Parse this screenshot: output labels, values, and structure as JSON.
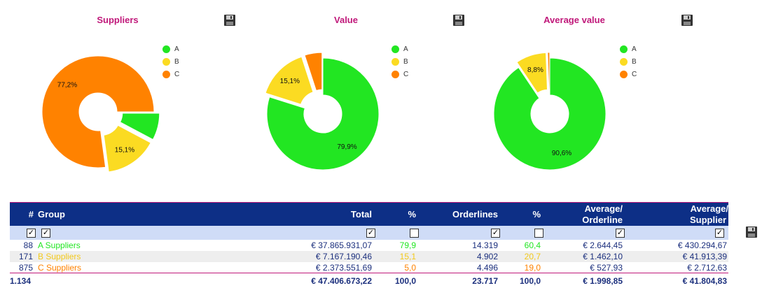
{
  "charts": [
    {
      "title": "Suppliers",
      "legend": [
        "A",
        "B",
        "C"
      ],
      "slices": [
        {
          "name": "A",
          "value": 7.8,
          "color": "#22e622",
          "label": ""
        },
        {
          "name": "B",
          "value": 15.1,
          "color": "#fbdb22",
          "label": "15,1%"
        },
        {
          "name": "C",
          "value": 77.2,
          "color": "#ff8200",
          "label": "77,2%"
        }
      ]
    },
    {
      "title": "Value",
      "legend": [
        "A",
        "B",
        "C"
      ],
      "slices": [
        {
          "name": "A",
          "value": 79.9,
          "color": "#22e622",
          "label": "79,9%"
        },
        {
          "name": "B",
          "value": 15.1,
          "color": "#fbdb22",
          "label": "15,1%"
        },
        {
          "name": "C",
          "value": 5.0,
          "color": "#ff8200",
          "label": ""
        }
      ]
    },
    {
      "title": "Average value",
      "legend": [
        "A",
        "B",
        "C"
      ],
      "slices": [
        {
          "name": "A",
          "value": 90.6,
          "color": "#22e622",
          "label": "90,6%"
        },
        {
          "name": "B",
          "value": 8.8,
          "color": "#fbdb22",
          "label": "8,8%"
        },
        {
          "name": "C",
          "value": 0.6,
          "color": "#ff8200",
          "label": ""
        }
      ]
    }
  ],
  "chart_data": [
    {
      "type": "pie",
      "title": "Suppliers",
      "categories": [
        "A",
        "B",
        "C"
      ],
      "values": [
        7.8,
        15.1,
        77.2
      ],
      "legend": "top-right"
    },
    {
      "type": "pie",
      "title": "Value",
      "categories": [
        "A",
        "B",
        "C"
      ],
      "values": [
        79.9,
        15.1,
        5.0
      ],
      "legend": "top-right"
    },
    {
      "type": "pie",
      "title": "Average value",
      "categories": [
        "A",
        "B",
        "C"
      ],
      "values": [
        90.6,
        8.8,
        0.6
      ],
      "legend": "top-right"
    }
  ],
  "table": {
    "headers": {
      "num": "#",
      "group": "Group",
      "total": "Total",
      "pct1": "%",
      "orderlines": "Orderlines",
      "pct2": "%",
      "avg_orderline_1": "Average/",
      "avg_orderline_2": "Orderline",
      "avg_supplier_1": "Average/",
      "avg_supplier_2": "Supplier"
    },
    "checkboxes": {
      "num": "✓",
      "group": "✓",
      "total": "✓",
      "pct1": "",
      "orderlines": "✓",
      "pct2": "",
      "avg_orderline": "✓",
      "avg_supplier": "✓"
    },
    "rows": [
      {
        "num": "88",
        "group": "A Suppliers",
        "total": "€ 37.865.931,07",
        "pct1": "79,9",
        "orderlines": "14.319",
        "pct2": "60,4",
        "avg_orderline": "€ 2.644,45",
        "avg_supplier": "€ 430.294,67",
        "color": "#22e622"
      },
      {
        "num": "171",
        "group": "B Suppliers",
        "total": "€ 7.167.190,46",
        "pct1": "15,1",
        "orderlines": "4.902",
        "pct2": "20,7",
        "avg_orderline": "€ 1.462,10",
        "avg_supplier": "€ 41.913,39",
        "color": "#f3c91a"
      },
      {
        "num": "875",
        "group": "C Suppliers",
        "total": "€ 2.373.551,69",
        "pct1": "5,0",
        "orderlines": "4.496",
        "pct2": "19,0",
        "avg_orderline": "€ 527,93",
        "avg_supplier": "€ 2.712,63",
        "color": "#ff8200"
      }
    ],
    "totals": {
      "num": "1.134",
      "total": "€ 47.406.673,22",
      "pct1": "100,0",
      "orderlines": "23.717",
      "pct2": "100,0",
      "avg_orderline": "€ 1.998,85",
      "avg_supplier": "€ 41.804,83"
    }
  },
  "icons": {
    "save": "save-icon"
  },
  "colors": {
    "header_bg": "#0d2f86",
    "title": "#c0187a",
    "checkbox_row": "#cfdcf7"
  }
}
